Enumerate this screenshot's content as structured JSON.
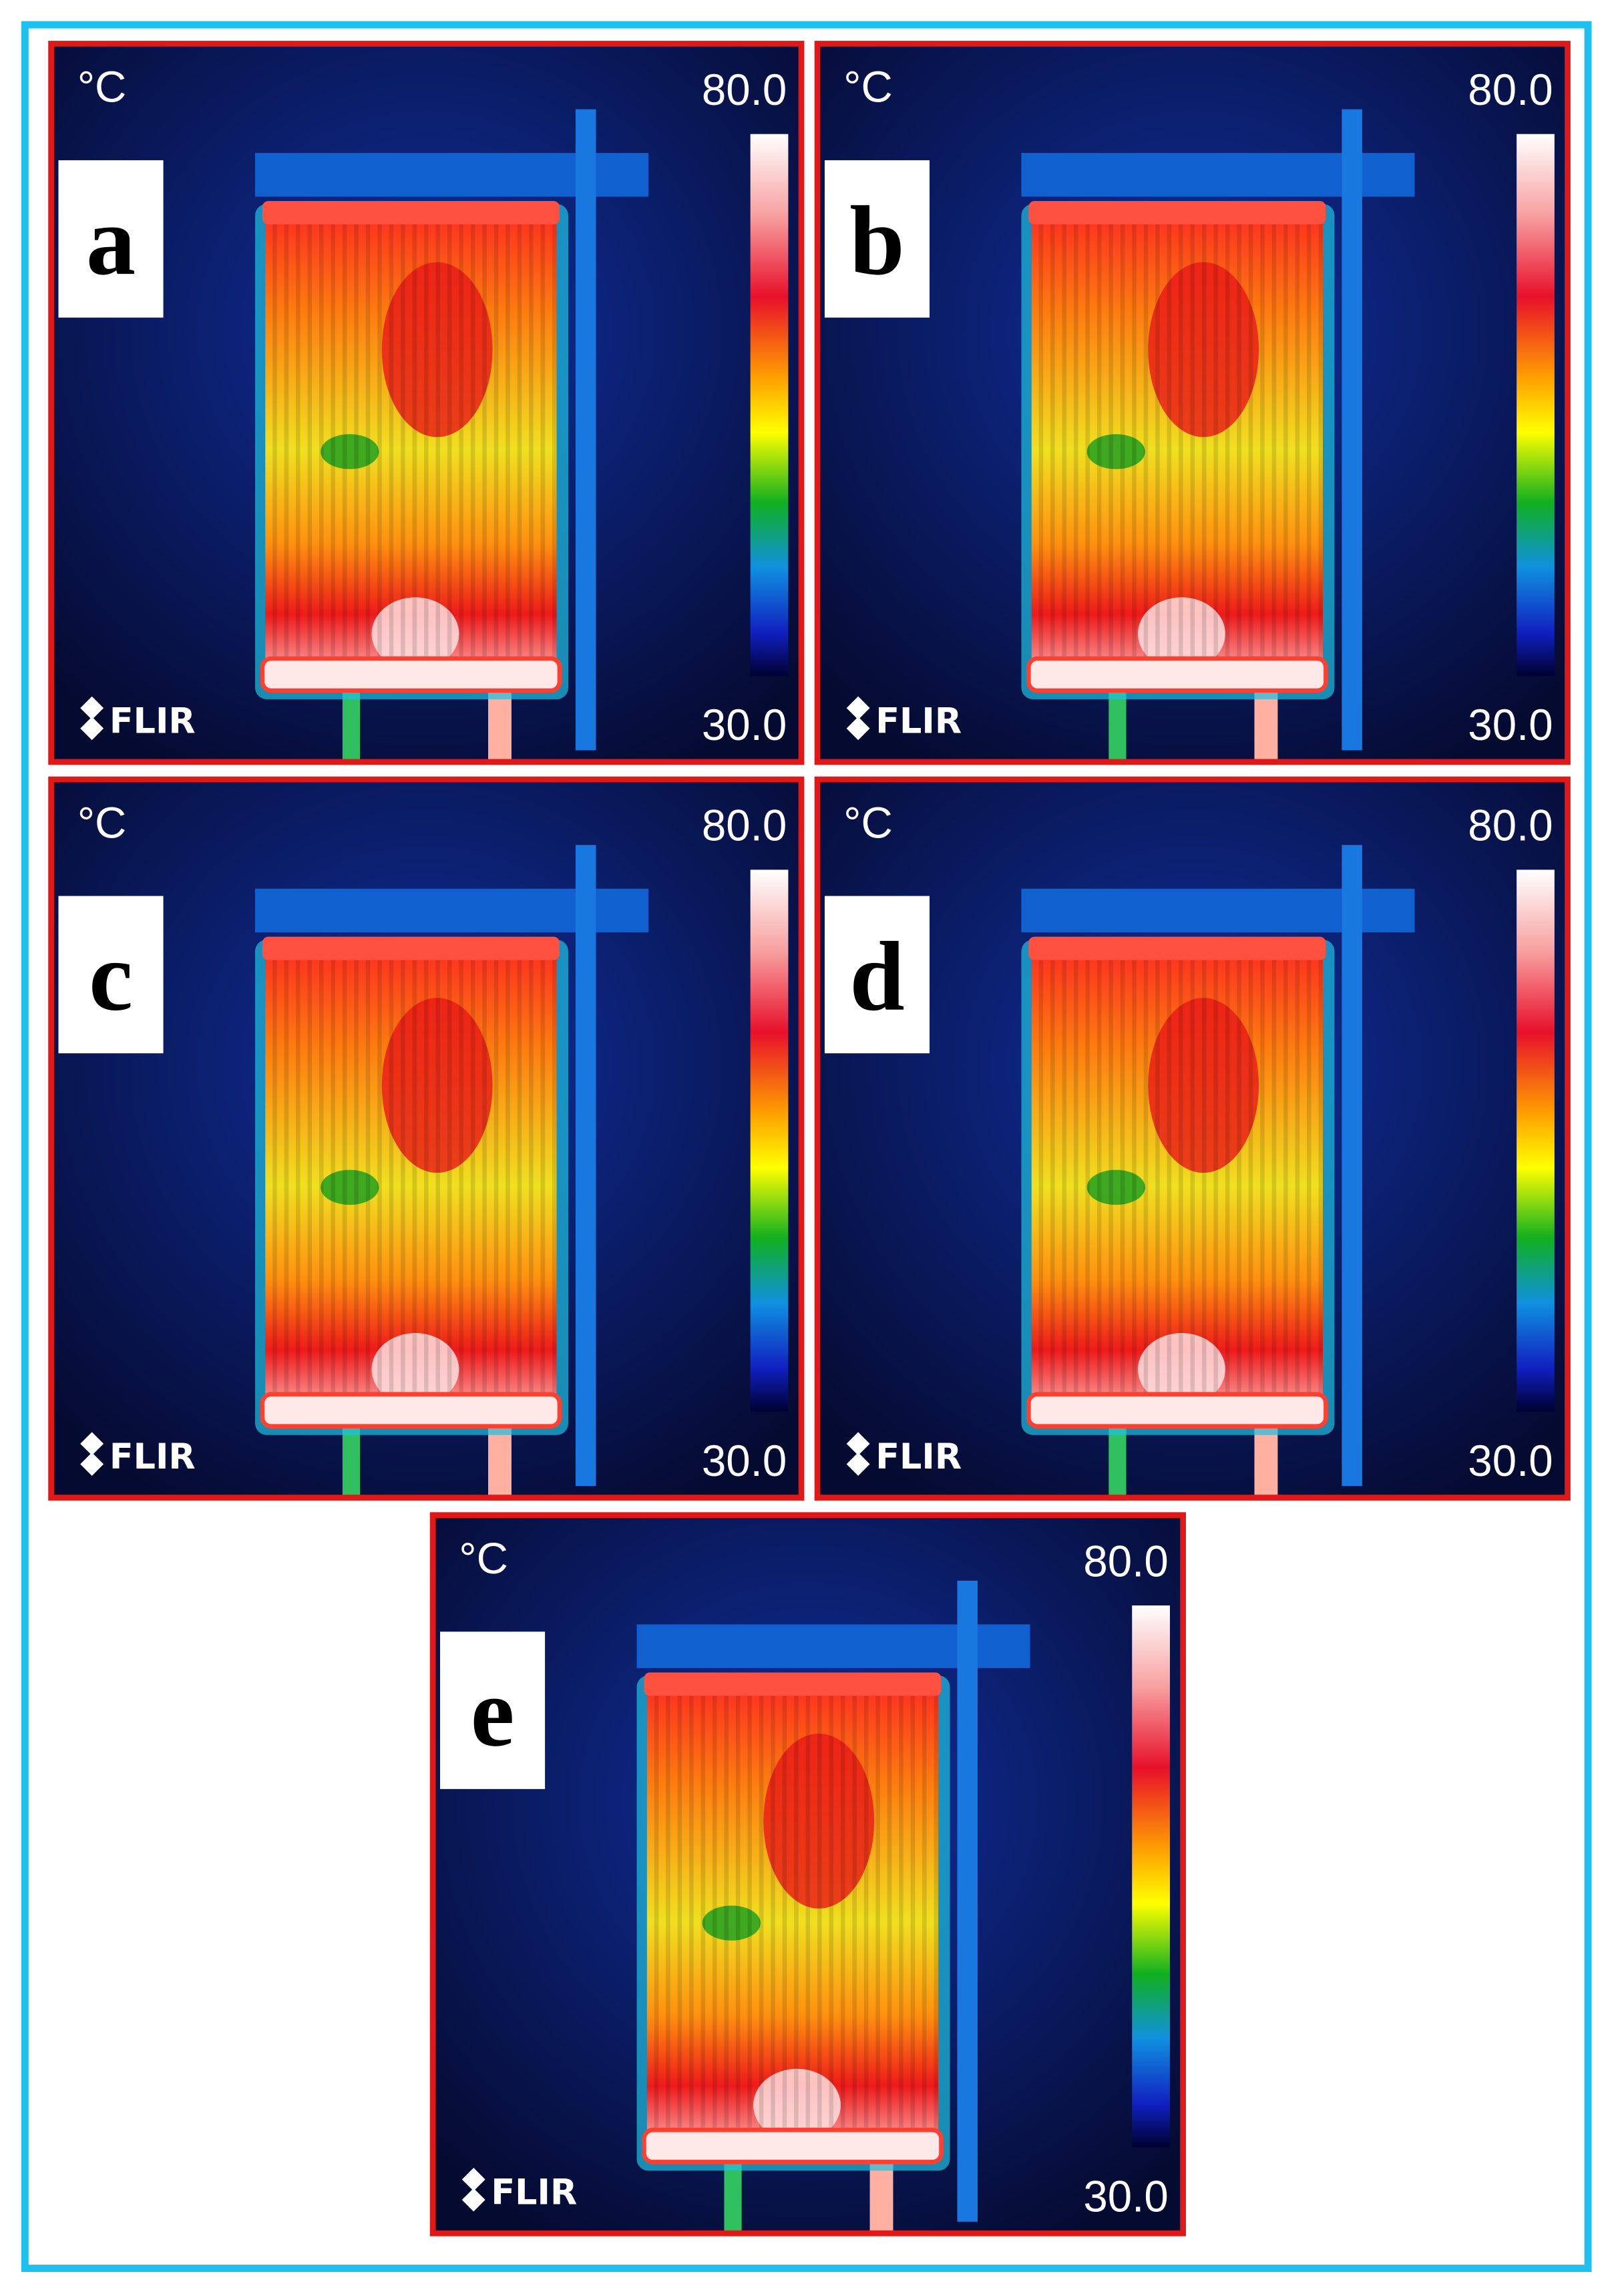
{
  "panels": [
    {
      "label": "a",
      "unit": "°C",
      "max": "80.0",
      "min": "30.0",
      "brand": "FLIR"
    },
    {
      "label": "b",
      "unit": "°C",
      "max": "80.0",
      "min": "30.0",
      "brand": "FLIR"
    },
    {
      "label": "c",
      "unit": "°C",
      "max": "80.0",
      "min": "30.0",
      "brand": "FLIR"
    },
    {
      "label": "d",
      "unit": "°C",
      "max": "80.0",
      "min": "30.0",
      "brand": "FLIR"
    },
    {
      "label": "e",
      "unit": "°C",
      "max": "80.0",
      "min": "30.0",
      "brand": "FLIR"
    }
  ]
}
